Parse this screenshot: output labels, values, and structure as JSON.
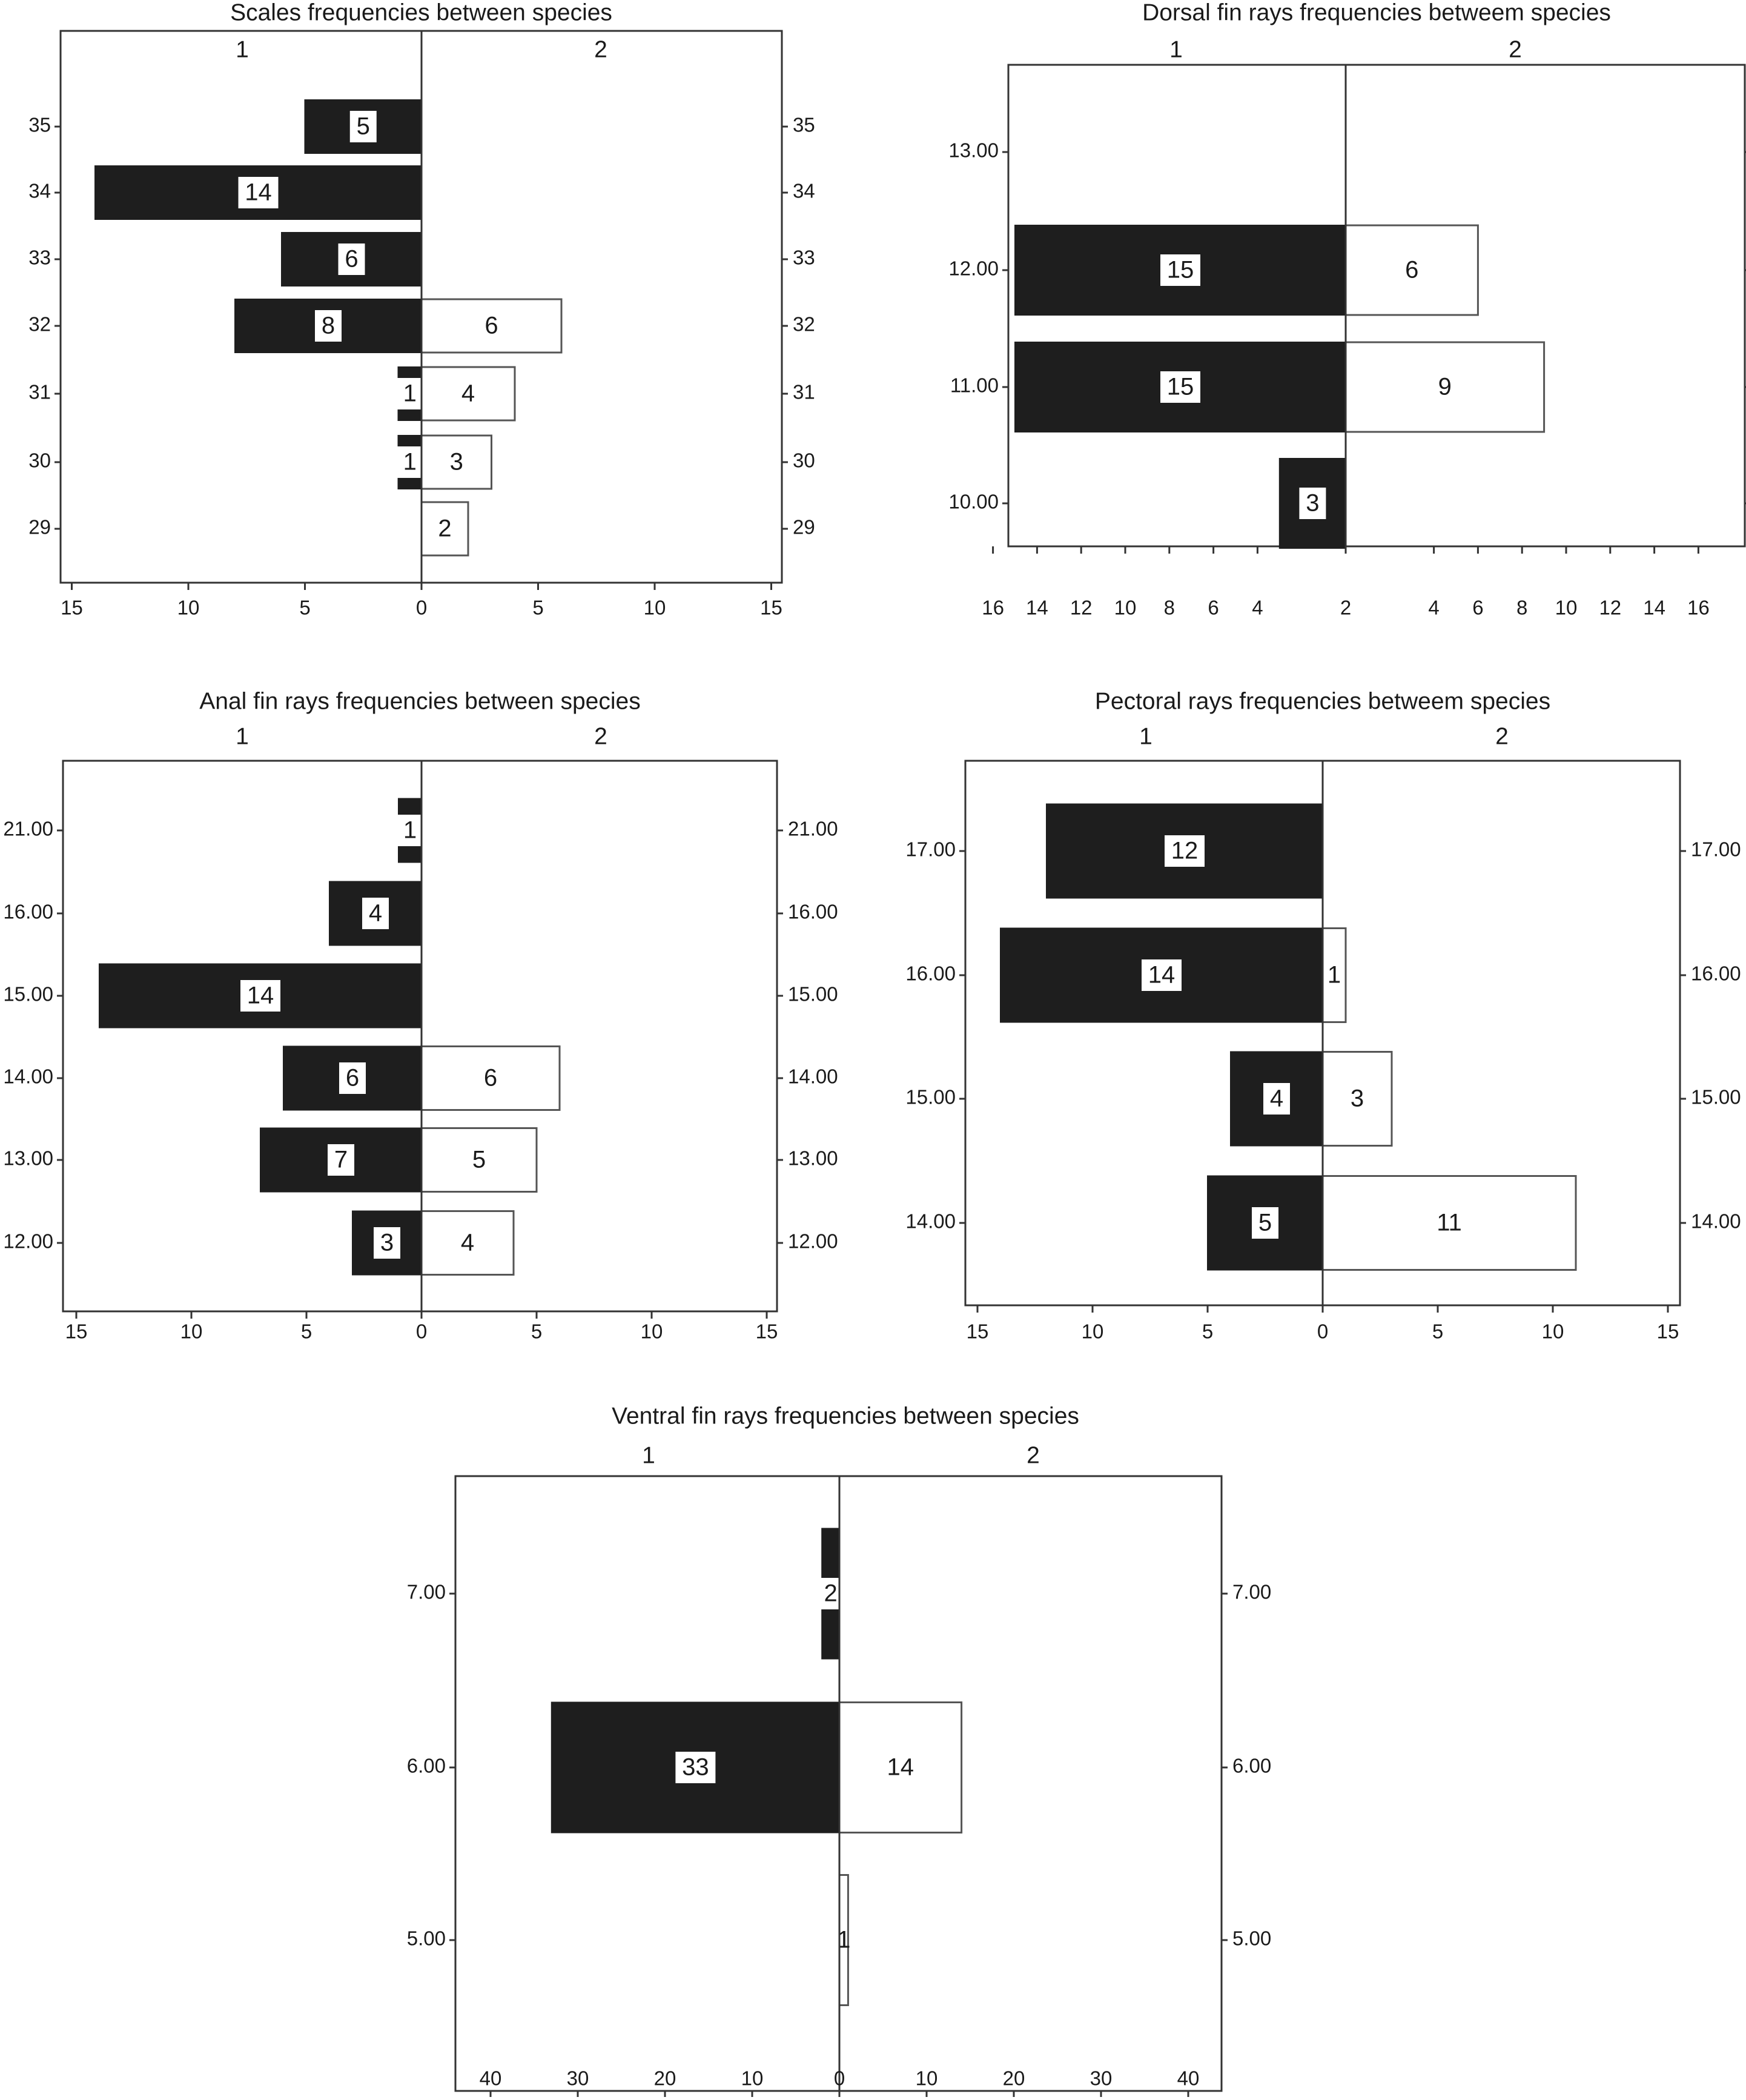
{
  "chart_data": [
    {
      "type": "bar",
      "title": "Scales frequencies between species",
      "groups": [
        "1",
        "2"
      ],
      "categories": [
        "35",
        "34",
        "33",
        "32",
        "31",
        "30",
        "29"
      ],
      "series": [
        {
          "name": "1",
          "values": [
            5,
            14,
            6,
            8,
            1,
            1,
            0
          ]
        },
        {
          "name": "2",
          "values": [
            0,
            0,
            0,
            6,
            4,
            3,
            2
          ]
        }
      ],
      "xticks": [
        15,
        10,
        5,
        0,
        5,
        10,
        15
      ],
      "xlim": [
        -15,
        15
      ],
      "grid": false
    },
    {
      "type": "bar",
      "title": "Dorsal fin rays frequencies betweem species",
      "groups": [
        "1",
        "2"
      ],
      "categories": [
        "13.00",
        "12.00",
        "11.00",
        "10.00"
      ],
      "series": [
        {
          "name": "1",
          "values": [
            0,
            15,
            15,
            3
          ]
        },
        {
          "name": "2",
          "values": [
            0,
            6,
            9,
            0
          ]
        }
      ],
      "xticks": [
        16,
        14,
        12,
        10,
        8,
        6,
        4,
        2,
        4,
        6,
        8,
        10,
        12,
        14,
        16
      ],
      "xlim": [
        -17,
        17
      ],
      "grid": false
    },
    {
      "type": "bar",
      "title": "Anal fin rays frequencies between species",
      "groups": [
        "1",
        "2"
      ],
      "categories": [
        "21.00",
        "16.00",
        "15.00",
        "14.00",
        "13.00",
        "12.00"
      ],
      "series": [
        {
          "name": "1",
          "values": [
            1,
            4,
            14,
            6,
            7,
            3
          ]
        },
        {
          "name": "2",
          "values": [
            0,
            0,
            0,
            6,
            5,
            4
          ]
        }
      ],
      "xticks": [
        15,
        10,
        5,
        0,
        5,
        10,
        15
      ],
      "xlim": [
        -15,
        15
      ],
      "grid": false
    },
    {
      "type": "bar",
      "title": "Pectoral rays frequencies betweem species",
      "groups": [
        "1",
        "2"
      ],
      "categories": [
        "17.00",
        "16.00",
        "15.00",
        "14.00"
      ],
      "series": [
        {
          "name": "1",
          "values": [
            12,
            14,
            4,
            5
          ]
        },
        {
          "name": "2",
          "values": [
            0,
            1,
            3,
            11
          ]
        }
      ],
      "xticks": [
        15,
        10,
        5,
        0,
        5,
        10,
        15
      ],
      "xlim": [
        -15,
        15
      ],
      "grid": false
    },
    {
      "type": "bar",
      "title": "Ventral fin rays frequencies between species",
      "groups": [
        "1",
        "2"
      ],
      "categories": [
        "7.00",
        "6.00",
        "5.00"
      ],
      "series": [
        {
          "name": "1",
          "values": [
            2,
            33,
            0
          ]
        },
        {
          "name": "2",
          "values": [
            0,
            14,
            1
          ]
        }
      ],
      "xticks": [
        40,
        30,
        20,
        10,
        0,
        10,
        20,
        30,
        40
      ],
      "xlim": [
        -40,
        40
      ],
      "grid": false
    }
  ],
  "colors": {
    "group1_fill": "#1e1e1e",
    "group2_fill": "#ffffff",
    "stroke": "#555555"
  }
}
